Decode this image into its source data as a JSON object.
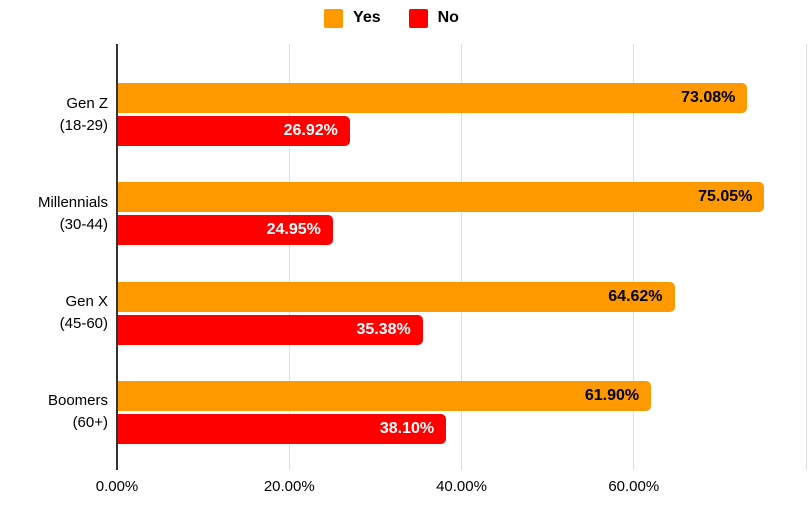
{
  "legend": {
    "items": [
      {
        "label": "Yes",
        "color": "#FF9900"
      },
      {
        "label": "No",
        "color": "#FF0000"
      }
    ]
  },
  "chart_data": {
    "type": "bar",
    "orientation": "horizontal",
    "title": "",
    "xlabel": "",
    "ylabel": "",
    "xlim": [
      0,
      80
    ],
    "grid": true,
    "legend_position": "top",
    "categories": [
      {
        "name": "Gen Z",
        "range": "(18-29)"
      },
      {
        "name": "Millennials",
        "range": "(30-44)"
      },
      {
        "name": "Gen X",
        "range": "(45-60)"
      },
      {
        "name": "Boomers",
        "range": "(60+)"
      }
    ],
    "series": [
      {
        "name": "Yes",
        "color": "#FF9900",
        "label_color": "#000000",
        "values": [
          73.08,
          75.05,
          64.62,
          61.9
        ],
        "labels": [
          "73.08%",
          "75.05%",
          "64.62%",
          "61.90%"
        ]
      },
      {
        "name": "No",
        "color": "#FF0000",
        "label_color": "#FFFFFF",
        "values": [
          26.92,
          24.95,
          35.38,
          38.1
        ],
        "labels": [
          "26.92%",
          "24.95%",
          "35.38%",
          "38.10%"
        ]
      }
    ],
    "xticks": [
      {
        "value": 0,
        "label": "0.00%"
      },
      {
        "value": 20,
        "label": "20.00%"
      },
      {
        "value": 40,
        "label": "40.00%"
      },
      {
        "value": 60,
        "label": "60.00%"
      },
      {
        "value": 80,
        "label": ""
      }
    ]
  }
}
